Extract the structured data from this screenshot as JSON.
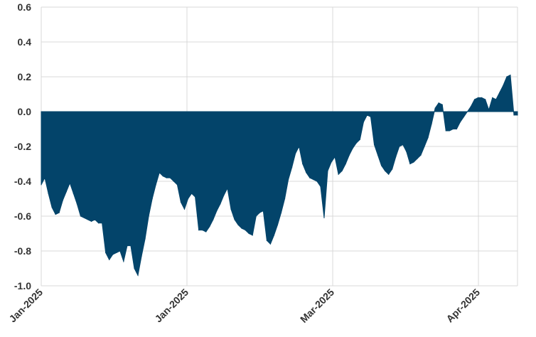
{
  "chart_data": {
    "type": "area",
    "title": "",
    "xlabel": "",
    "ylabel": "",
    "ylim": [
      -1.0,
      0.6
    ],
    "yticks": [
      0.6,
      0.4,
      0.2,
      0.0,
      -0.2,
      -0.4,
      -0.6,
      -0.8,
      -1.0
    ],
    "ytick_labels": [
      "0.6",
      "0.4",
      "0.2",
      "0.0",
      "-0.2",
      "-0.4",
      "-0.6",
      "-0.8",
      "-1.0"
    ],
    "xtick_labels": [
      "Jan-2025",
      "Jan-2025",
      "Mar-2025",
      "Apr-2025"
    ],
    "grid": true,
    "colors": {
      "fill": "#03446A",
      "grid": "#d9d9d9",
      "text": "#333333"
    },
    "series": [
      {
        "values": [
          -0.42,
          -0.38,
          -0.47,
          -0.55,
          -0.59,
          -0.58,
          -0.51,
          -0.46,
          -0.41,
          -0.47,
          -0.53,
          -0.6,
          -0.61,
          -0.62,
          -0.63,
          -0.62,
          -0.64,
          -0.64,
          -0.81,
          -0.85,
          -0.82,
          -0.81,
          -0.8,
          -0.86,
          -0.77,
          -0.77,
          -0.9,
          -0.94,
          -0.83,
          -0.73,
          -0.6,
          -0.5,
          -0.42,
          -0.35,
          -0.37,
          -0.38,
          -0.38,
          -0.4,
          -0.42,
          -0.52,
          -0.56,
          -0.5,
          -0.47,
          -0.49,
          -0.68,
          -0.68,
          -0.69,
          -0.66,
          -0.62,
          -0.57,
          -0.53,
          -0.48,
          -0.44,
          -0.56,
          -0.62,
          -0.65,
          -0.67,
          -0.68,
          -0.7,
          -0.71,
          -0.6,
          -0.58,
          -0.57,
          -0.74,
          -0.76,
          -0.71,
          -0.65,
          -0.58,
          -0.5,
          -0.39,
          -0.32,
          -0.24,
          -0.2,
          -0.3,
          -0.35,
          -0.38,
          -0.39,
          -0.4,
          -0.43,
          -0.61,
          -0.34,
          -0.29,
          -0.26,
          -0.36,
          -0.34,
          -0.3,
          -0.25,
          -0.21,
          -0.18,
          -0.16,
          -0.06,
          -0.02,
          -0.03,
          -0.19,
          -0.25,
          -0.31,
          -0.34,
          -0.36,
          -0.33,
          -0.26,
          -0.2,
          -0.19,
          -0.23,
          -0.3,
          -0.29,
          -0.27,
          -0.25,
          -0.2,
          -0.15,
          -0.07,
          0.02,
          0.05,
          0.04,
          -0.11,
          -0.11,
          -0.1,
          -0.1,
          -0.06,
          -0.03,
          0.0,
          0.03,
          0.07,
          0.08,
          0.08,
          0.07,
          0.01,
          0.08,
          0.07,
          0.11,
          0.15,
          0.2,
          0.21,
          -0.02,
          -0.02
        ]
      }
    ]
  }
}
